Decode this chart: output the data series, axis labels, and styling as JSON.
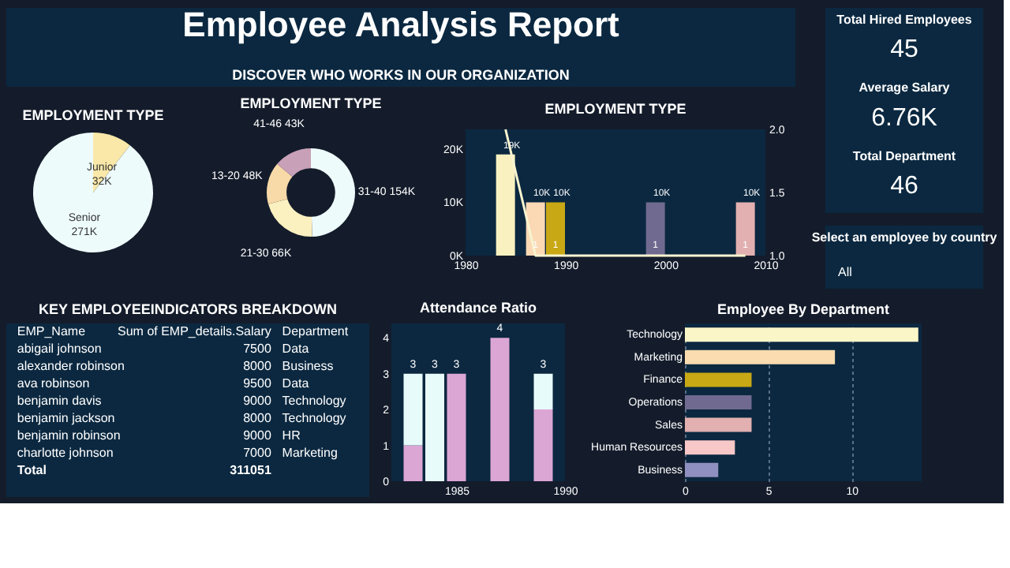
{
  "chart_data": [
    {
      "type": "other",
      "title": "Employee Analysis Report",
      "subtitle": "DISCOVER WHO WORKS IN OUR ORGANIZATION"
    },
    {
      "type": "pie",
      "title": "EMPLOYMENT TYPE",
      "categories": [
        "Junior",
        "Senior"
      ],
      "values": [
        32000,
        271000
      ],
      "value_labels": [
        "32K",
        "271K"
      ],
      "colors": [
        "#f9e8a8",
        "#eefbfb"
      ]
    },
    {
      "type": "donut",
      "title": "EMPLOYMENT TYPE",
      "categories": [
        "31-40",
        "21-30",
        "13-20",
        "41-46"
      ],
      "values": [
        154000,
        66000,
        48000,
        43000
      ],
      "value_labels": [
        "154K",
        "66K",
        "48K",
        "43K"
      ],
      "colors": [
        "#eefbfb",
        "#fbf0c0",
        "#f8d9a8",
        "#c8a0b8"
      ]
    },
    {
      "type": "bar",
      "title": "EMPLOYMENT TYPE",
      "x": [
        1984,
        1987,
        1989,
        1999,
        2008
      ],
      "xlim": [
        1980,
        2010
      ],
      "xticks": [
        1980,
        1990,
        2000,
        2010
      ],
      "ylim": [
        0,
        23700
      ],
      "yticks": [
        {
          "value": 0,
          "label": "0K"
        },
        {
          "value": 10000,
          "label": "10K"
        },
        {
          "value": 20000,
          "label": "20K"
        }
      ],
      "y2lim": [
        1,
        2
      ],
      "y2ticks": [
        {
          "value": 1,
          "label": "1.0"
        },
        {
          "value": 1.5,
          "label": "1.5"
        },
        {
          "value": 2,
          "label": "2.0"
        }
      ],
      "series": [
        {
          "type": "bar",
          "colors": [
            "#f9f1c0",
            "#fbd9b5",
            "#c8a814",
            "#706a90",
            "#e2b0b0"
          ],
          "values": [
            19000,
            10000,
            10000,
            10000,
            10000
          ],
          "value_labels": [
            "19K",
            "10K",
            "10K",
            "10K",
            "10K"
          ]
        },
        {
          "type": "line",
          "axis": "y2",
          "color": "#f8f4d0",
          "values": [
            2,
            1,
            1,
            1,
            1
          ],
          "value_labels": [
            null,
            "1",
            "1",
            "1",
            "1"
          ]
        }
      ]
    },
    {
      "type": "other",
      "categories": [
        "Total Hired Employees",
        "Average Salary",
        "Total Department"
      ],
      "value_labels": [
        "45",
        "6.76K",
        "46"
      ]
    },
    {
      "type": "other",
      "annotations": [
        "Select an employee by country",
        "All"
      ]
    },
    {
      "type": "other",
      "title": "KEY EMPLOYEEINDICATORS BREAKDOWN",
      "xlabel": "EMP_Name",
      "ylabel": "Sum of EMP_details.Salary",
      "y2label": "Department",
      "categories": [
        "abigail johnson",
        "alexander robinson",
        "ava robinson",
        "benjamin davis",
        "benjamin jackson",
        "benjamin robinson",
        "charlotte johnson"
      ],
      "value_labels": [
        "7500",
        "8000",
        "9500",
        "9000",
        "8000",
        "9000",
        "7000"
      ],
      "annotations": [
        "Data",
        "Business",
        "Data",
        "Technology",
        "Technology",
        "HR",
        "Marketing",
        "Total"
      ],
      "totals": [
        "311051"
      ]
    },
    {
      "type": "bar",
      "title": "Attendance Ratio",
      "stacked": true,
      "x": [
        1983,
        1984,
        1985,
        1987,
        1989
      ],
      "xlim": [
        1982,
        1990
      ],
      "xticks": [
        1985,
        1990
      ],
      "ylim": [
        0,
        4.4
      ],
      "yticks": [
        0,
        1,
        2,
        3,
        4
      ],
      "series": [
        {
          "color": "#dba6d4",
          "values": [
            1,
            0,
            3,
            4,
            2
          ]
        },
        {
          "color": "#e8fbfb",
          "values": [
            2,
            3,
            0,
            0,
            1
          ]
        }
      ],
      "totals": [
        "3",
        "3",
        "3",
        "4",
        "3"
      ]
    },
    {
      "type": "bar",
      "title": "Employee By Department",
      "orientation": "horizontal",
      "grid": "x",
      "categories": [
        "Technology",
        "Marketing",
        "Finance",
        "Operations",
        "Sales",
        "Human Resources",
        "Business"
      ],
      "values": [
        14,
        9,
        4,
        4,
        4,
        3,
        2
      ],
      "colors": [
        "#fbf6c8",
        "#fbdcb0",
        "#c8a814",
        "#706a90",
        "#e2b0b0",
        "#f8c8c8",
        "#9090c0"
      ],
      "xlim": [
        0,
        14.2
      ],
      "xticks": [
        0,
        5,
        10
      ]
    }
  ]
}
